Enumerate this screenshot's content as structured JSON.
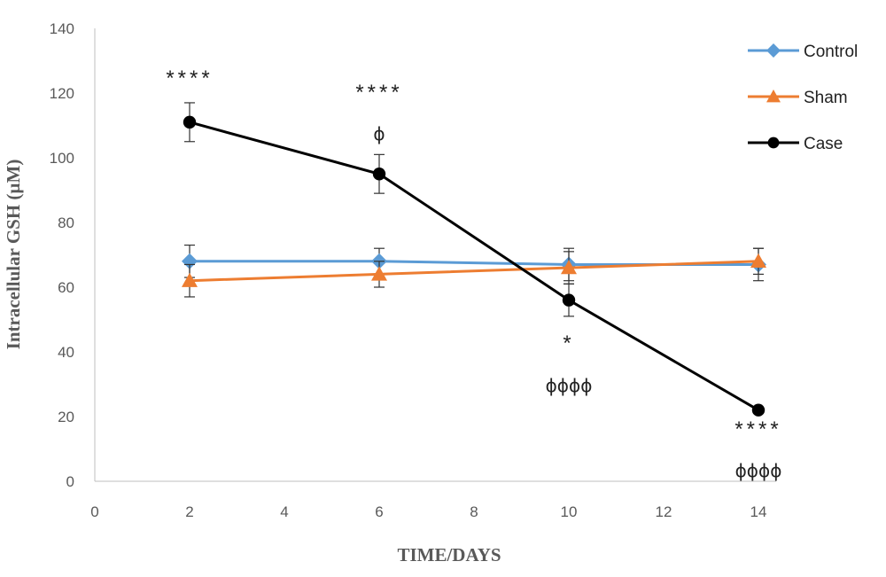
{
  "chart_data": {
    "type": "line",
    "xlabel": "TIME/DAYS",
    "ylabel": "Intracellular GSH (µM)",
    "xlim": [
      0,
      14
    ],
    "ylim": [
      0,
      140
    ],
    "xticks": [
      0,
      2,
      4,
      6,
      8,
      10,
      12,
      14
    ],
    "yticks": [
      0,
      20,
      40,
      60,
      80,
      100,
      120,
      140
    ],
    "grid": false,
    "legend_position": "top-right",
    "x": [
      2,
      6,
      10,
      14
    ],
    "series": [
      {
        "name": "Control",
        "color": "#5B9BD5",
        "marker": "diamond",
        "values": [
          68,
          68,
          67,
          67
        ],
        "errors": [
          5,
          4,
          5,
          5
        ]
      },
      {
        "name": "Sham",
        "color": "#ED7D31",
        "marker": "triangle",
        "values": [
          62,
          64,
          66,
          68
        ],
        "errors": [
          5,
          4,
          5,
          4
        ]
      },
      {
        "name": "Case",
        "color": "#000000",
        "marker": "circle",
        "values": [
          111,
          95,
          56,
          22
        ],
        "errors": [
          6,
          6,
          5,
          1
        ]
      }
    ],
    "annotations": [
      {
        "x": 2,
        "lines": [
          "****"
        ]
      },
      {
        "x": 6,
        "lines": [
          "****",
          "ϕ"
        ]
      },
      {
        "x": 10,
        "lines": [
          "*",
          "ϕϕϕϕ"
        ]
      },
      {
        "x": 14,
        "lines": [
          "****",
          "ϕϕϕϕ"
        ]
      }
    ]
  }
}
